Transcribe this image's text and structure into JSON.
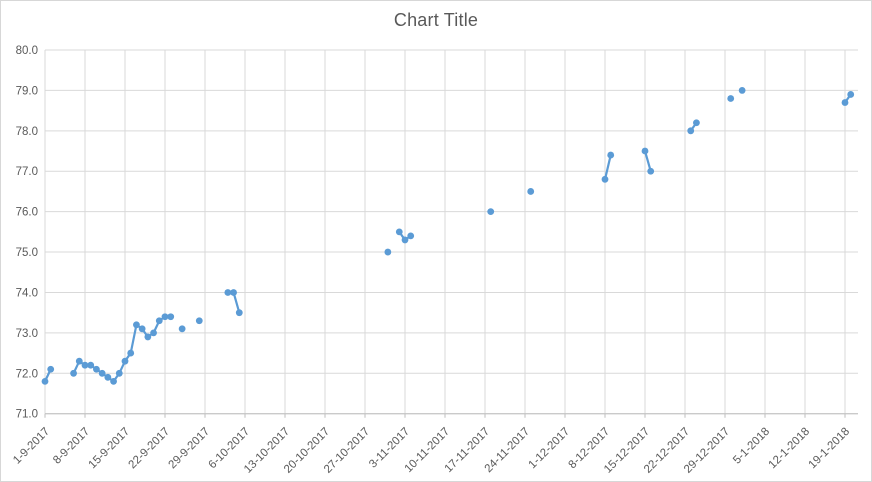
{
  "chart": {
    "title": "Chart Title",
    "colors": {
      "series": "#5B9BD5",
      "grid": "#D9D9D9",
      "axis_line": "#BFBFBF",
      "tick_text": "#595959",
      "title_text": "#595959",
      "background": "#FFFFFF",
      "border": "#D7D7D7"
    }
  },
  "chart_data": {
    "type": "line",
    "title": "Chart Title",
    "xlabel": "",
    "ylabel": "",
    "grid": true,
    "legend_position": "none",
    "marker": "circle",
    "line_connect": "consecutive-days-only",
    "ylim": [
      71,
      80
    ],
    "y_tick_labels": [
      "80.0",
      "79.0",
      "78.0",
      "77.0",
      "76.0",
      "75.0",
      "74.0",
      "73.0",
      "72.0",
      "71.0"
    ],
    "x_tick_labels": [
      "1-9-2017",
      "8-9-2017",
      "15-9-2017",
      "22-9-2017",
      "29-9-2017",
      "6-10-2017",
      "13-10-2017",
      "20-10-2017",
      "27-10-2017",
      "3-11-2017",
      "10-11-2017",
      "17-11-2017",
      "24-11-2017",
      "1-12-2017",
      "8-12-2017",
      "15-12-2017",
      "22-12-2017",
      "29-12-2017",
      "5-1-2018",
      "12-1-2018",
      "19-1-2018"
    ],
    "points": [
      {
        "date": "1-9-2017",
        "value": 71.8
      },
      {
        "date": "2-9-2017",
        "value": 72.1
      },
      {
        "date": "6-9-2017",
        "value": 72.0
      },
      {
        "date": "7-9-2017",
        "value": 72.3
      },
      {
        "date": "8-9-2017",
        "value": 72.2
      },
      {
        "date": "9-9-2017",
        "value": 72.2
      },
      {
        "date": "10-9-2017",
        "value": 72.1
      },
      {
        "date": "11-9-2017",
        "value": 72.0
      },
      {
        "date": "12-9-2017",
        "value": 71.9
      },
      {
        "date": "13-9-2017",
        "value": 71.8
      },
      {
        "date": "14-9-2017",
        "value": 72.0
      },
      {
        "date": "15-9-2017",
        "value": 72.3
      },
      {
        "date": "16-9-2017",
        "value": 72.5
      },
      {
        "date": "17-9-2017",
        "value": 73.2
      },
      {
        "date": "18-9-2017",
        "value": 73.1
      },
      {
        "date": "19-9-2017",
        "value": 72.9
      },
      {
        "date": "20-9-2017",
        "value": 73.0
      },
      {
        "date": "21-9-2017",
        "value": 73.3
      },
      {
        "date": "22-9-2017",
        "value": 73.4
      },
      {
        "date": "23-9-2017",
        "value": 73.4
      },
      {
        "date": "25-9-2017",
        "value": 73.1
      },
      {
        "date": "28-9-2017",
        "value": 73.3
      },
      {
        "date": "3-10-2017",
        "value": 74.0
      },
      {
        "date": "4-10-2017",
        "value": 74.0
      },
      {
        "date": "5-10-2017",
        "value": 73.5
      },
      {
        "date": "31-10-2017",
        "value": 75.0
      },
      {
        "date": "2-11-2017",
        "value": 75.5
      },
      {
        "date": "3-11-2017",
        "value": 75.3
      },
      {
        "date": "4-11-2017",
        "value": 75.4
      },
      {
        "date": "18-11-2017",
        "value": 76.0
      },
      {
        "date": "25-11-2017",
        "value": 76.5
      },
      {
        "date": "8-12-2017",
        "value": 76.8
      },
      {
        "date": "9-12-2017",
        "value": 77.4
      },
      {
        "date": "15-12-2017",
        "value": 77.5
      },
      {
        "date": "16-12-2017",
        "value": 77.0
      },
      {
        "date": "23-12-2017",
        "value": 78.0
      },
      {
        "date": "24-12-2017",
        "value": 78.2
      },
      {
        "date": "30-12-2017",
        "value": 78.8
      },
      {
        "date": "1-1-2018",
        "value": 79.0
      },
      {
        "date": "19-1-2018",
        "value": 78.7
      },
      {
        "date": "20-1-2018",
        "value": 78.9
      }
    ]
  }
}
